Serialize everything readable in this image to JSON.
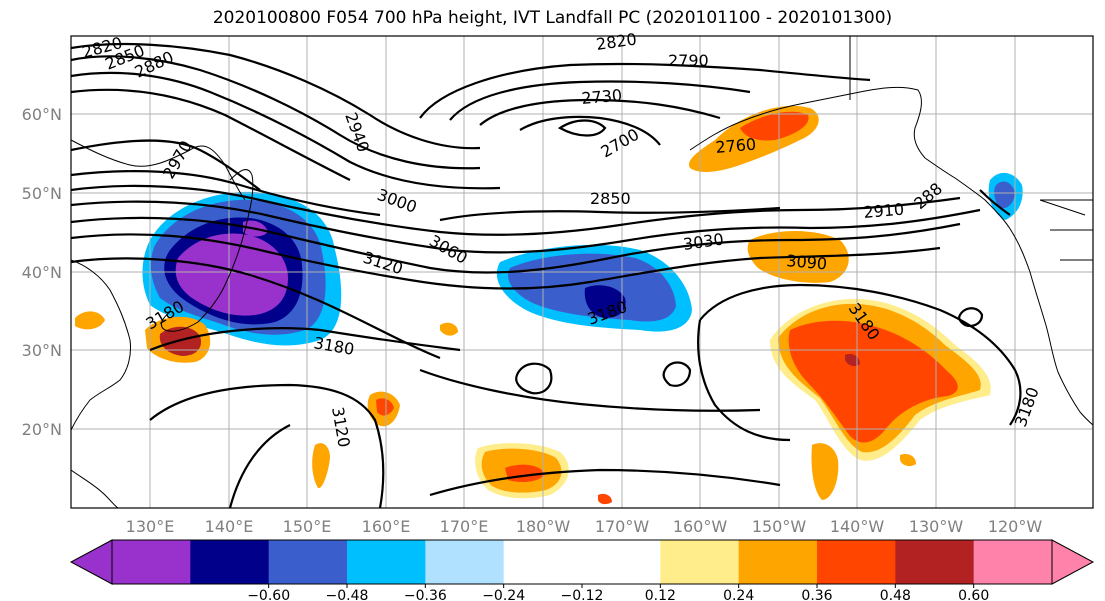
{
  "title": "2020100800 F054 700 hPa height, IVT Landfall PC (2020101100 - 2020101300)",
  "lat_labels": [
    "60°N",
    "50°N",
    "40°N",
    "30°N",
    "20°N"
  ],
  "lon_labels": [
    "130°E",
    "140°E",
    "150°E",
    "160°E",
    "170°E",
    "180°W",
    "170°W",
    "160°W",
    "150°W",
    "140°W",
    "130°W",
    "120°W"
  ],
  "contour_labels": [
    "2820",
    "2850",
    "2880",
    "2970",
    "2940",
    "2820",
    "2790",
    "2730",
    "2700",
    "2760",
    "2850",
    "3000",
    "2910",
    "288",
    "3030",
    "3060",
    "3120",
    "3090",
    "3180",
    "3180",
    "3180",
    "3120",
    "3180",
    "3180"
  ],
  "colorbar": {
    "colors": [
      "#9932cc",
      "#00008b",
      "#3a5fcd",
      "#00bfff",
      "#b0e2ff",
      "#ffffff",
      "#ffffff",
      "#ffec8b",
      "#ffa500",
      "#ff4500",
      "#b22222",
      "#ff82ab"
    ],
    "tick_labels": [
      "−0.60",
      "−0.48",
      "−0.36",
      "−0.24",
      "−0.12",
      "0.12",
      "0.24",
      "0.36",
      "0.48",
      "0.60"
    ]
  }
}
